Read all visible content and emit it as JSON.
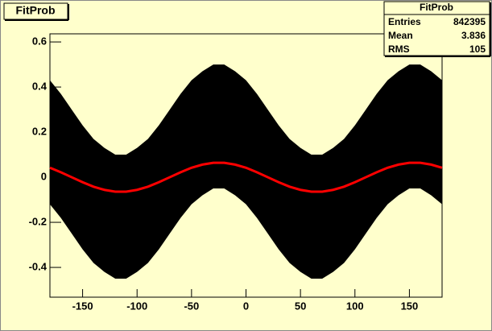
{
  "chart_data": {
    "type": "line",
    "title": "FitProb",
    "x": [
      -180,
      -170,
      -160,
      -150,
      -140,
      -130,
      -120,
      -110,
      -100,
      -90,
      -80,
      -70,
      -60,
      -50,
      -40,
      -30,
      -20,
      -10,
      0,
      10,
      20,
      30,
      40,
      50,
      60,
      70,
      80,
      90,
      100,
      110,
      120,
      130,
      140,
      150,
      160,
      170,
      180
    ],
    "band": {
      "color": "#000000",
      "upper": [
        0.43,
        0.37,
        0.3,
        0.23,
        0.17,
        0.13,
        0.1,
        0.1,
        0.13,
        0.17,
        0.23,
        0.3,
        0.37,
        0.43,
        0.47,
        0.5,
        0.5,
        0.47,
        0.43,
        0.37,
        0.3,
        0.23,
        0.17,
        0.13,
        0.1,
        0.1,
        0.13,
        0.17,
        0.23,
        0.3,
        0.37,
        0.43,
        0.47,
        0.5,
        0.5,
        0.47,
        0.43
      ],
      "lower": [
        -0.12,
        -0.18,
        -0.25,
        -0.32,
        -0.38,
        -0.42,
        -0.45,
        -0.45,
        -0.42,
        -0.38,
        -0.32,
        -0.25,
        -0.18,
        -0.12,
        -0.08,
        -0.05,
        -0.05,
        -0.08,
        -0.12,
        -0.18,
        -0.25,
        -0.32,
        -0.38,
        -0.42,
        -0.45,
        -0.45,
        -0.42,
        -0.38,
        -0.32,
        -0.25,
        -0.18,
        -0.12,
        -0.08,
        -0.05,
        -0.05,
        -0.08,
        -0.12
      ]
    },
    "fit": {
      "color": "#ff0000",
      "values": [
        0.042,
        0.022,
        0,
        -0.022,
        -0.042,
        -0.056,
        -0.064,
        -0.064,
        -0.056,
        -0.042,
        -0.022,
        0,
        0.022,
        0.042,
        0.056,
        0.064,
        0.064,
        0.056,
        0.042,
        0.022,
        0,
        -0.022,
        -0.042,
        -0.056,
        -0.064,
        -0.064,
        -0.056,
        -0.042,
        -0.022,
        0,
        0.022,
        0.042,
        0.056,
        0.064,
        0.064,
        0.056,
        0.042
      ]
    },
    "xlim": [
      -180,
      180
    ],
    "xticks": [
      -150,
      -100,
      -50,
      0,
      50,
      100,
      150
    ],
    "ylim": [
      -0.532,
      0.636
    ],
    "yticks": [
      -0.4,
      -0.2,
      0,
      0.2,
      0.4,
      0.6
    ],
    "stats": {
      "title": "FitProb",
      "rows": [
        [
          "Entries",
          842395
        ],
        [
          "Mean",
          3.836
        ],
        [
          "RMS",
          105
        ]
      ]
    }
  }
}
